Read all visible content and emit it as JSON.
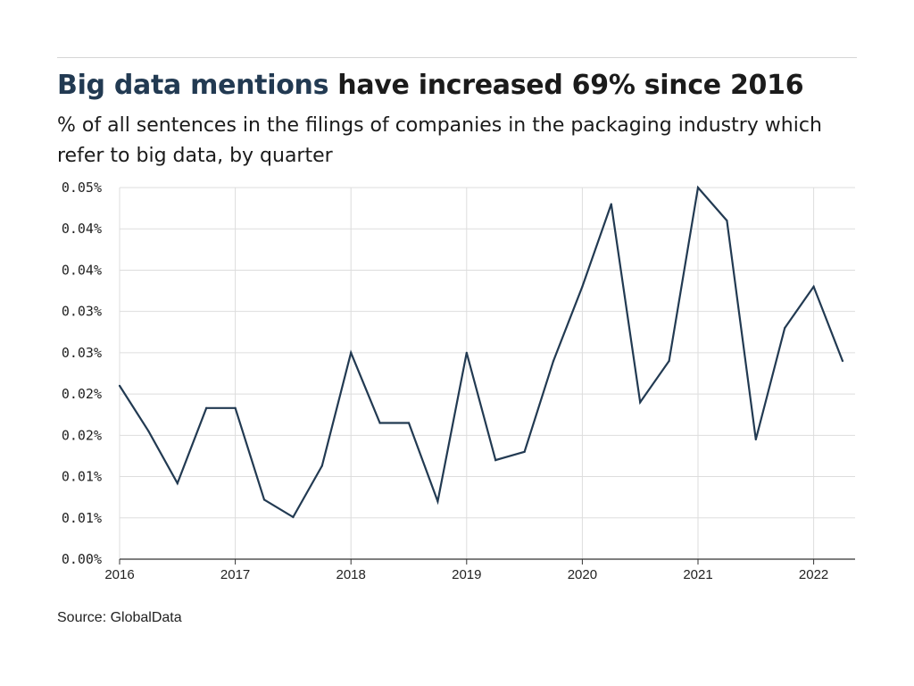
{
  "header": {
    "title_highlight": "Big data mentions",
    "title_rest": " have increased 69% since 2016",
    "subtitle": "% of all sentences in the filings of companies in the packaging industry which refer to big data, by quarter"
  },
  "footer": {
    "source": "Source: GlobalData"
  },
  "colors": {
    "line": "#223a52",
    "title_highlight": "#223a52",
    "grid": "#dddddd",
    "axis": "#333333"
  },
  "chart_data": {
    "type": "line",
    "title": "",
    "xlabel": "",
    "ylabel": "",
    "grid": true,
    "ylim": [
      0,
      0.045
    ],
    "ytick_labels": [
      "0.00%",
      "0.01%",
      "0.01%",
      "0.02%",
      "0.02%",
      "0.03%",
      "0.03%",
      "0.04%",
      "0.04%",
      "0.05%"
    ],
    "xtick_labels": [
      "2016",
      "2017",
      "2018",
      "2019",
      "2020",
      "2021",
      "2022"
    ],
    "x": [
      "2016 Q1",
      "2016 Q2",
      "2016 Q3",
      "2016 Q4",
      "2017 Q1",
      "2017 Q2",
      "2017 Q3",
      "2017 Q4",
      "2018 Q1",
      "2018 Q2",
      "2018 Q3",
      "2018 Q4",
      "2019 Q1",
      "2019 Q2",
      "2019 Q3",
      "2019 Q4",
      "2020 Q1",
      "2020 Q2",
      "2020 Q3",
      "2020 Q4",
      "2021 Q1",
      "2021 Q2",
      "2021 Q3",
      "2021 Q4",
      "2022 Q1",
      "2022 Q2"
    ],
    "series": [
      {
        "values": [
          0.021,
          0.0155,
          0.0092,
          0.0183,
          0.0183,
          0.0072,
          0.0051,
          0.0113,
          0.025,
          0.0165,
          0.0165,
          0.007,
          0.025,
          0.012,
          0.013,
          0.024,
          0.033,
          0.043,
          0.019,
          0.024,
          0.045,
          0.041,
          0.0145,
          0.028,
          0.033,
          0.024
        ]
      }
    ]
  }
}
